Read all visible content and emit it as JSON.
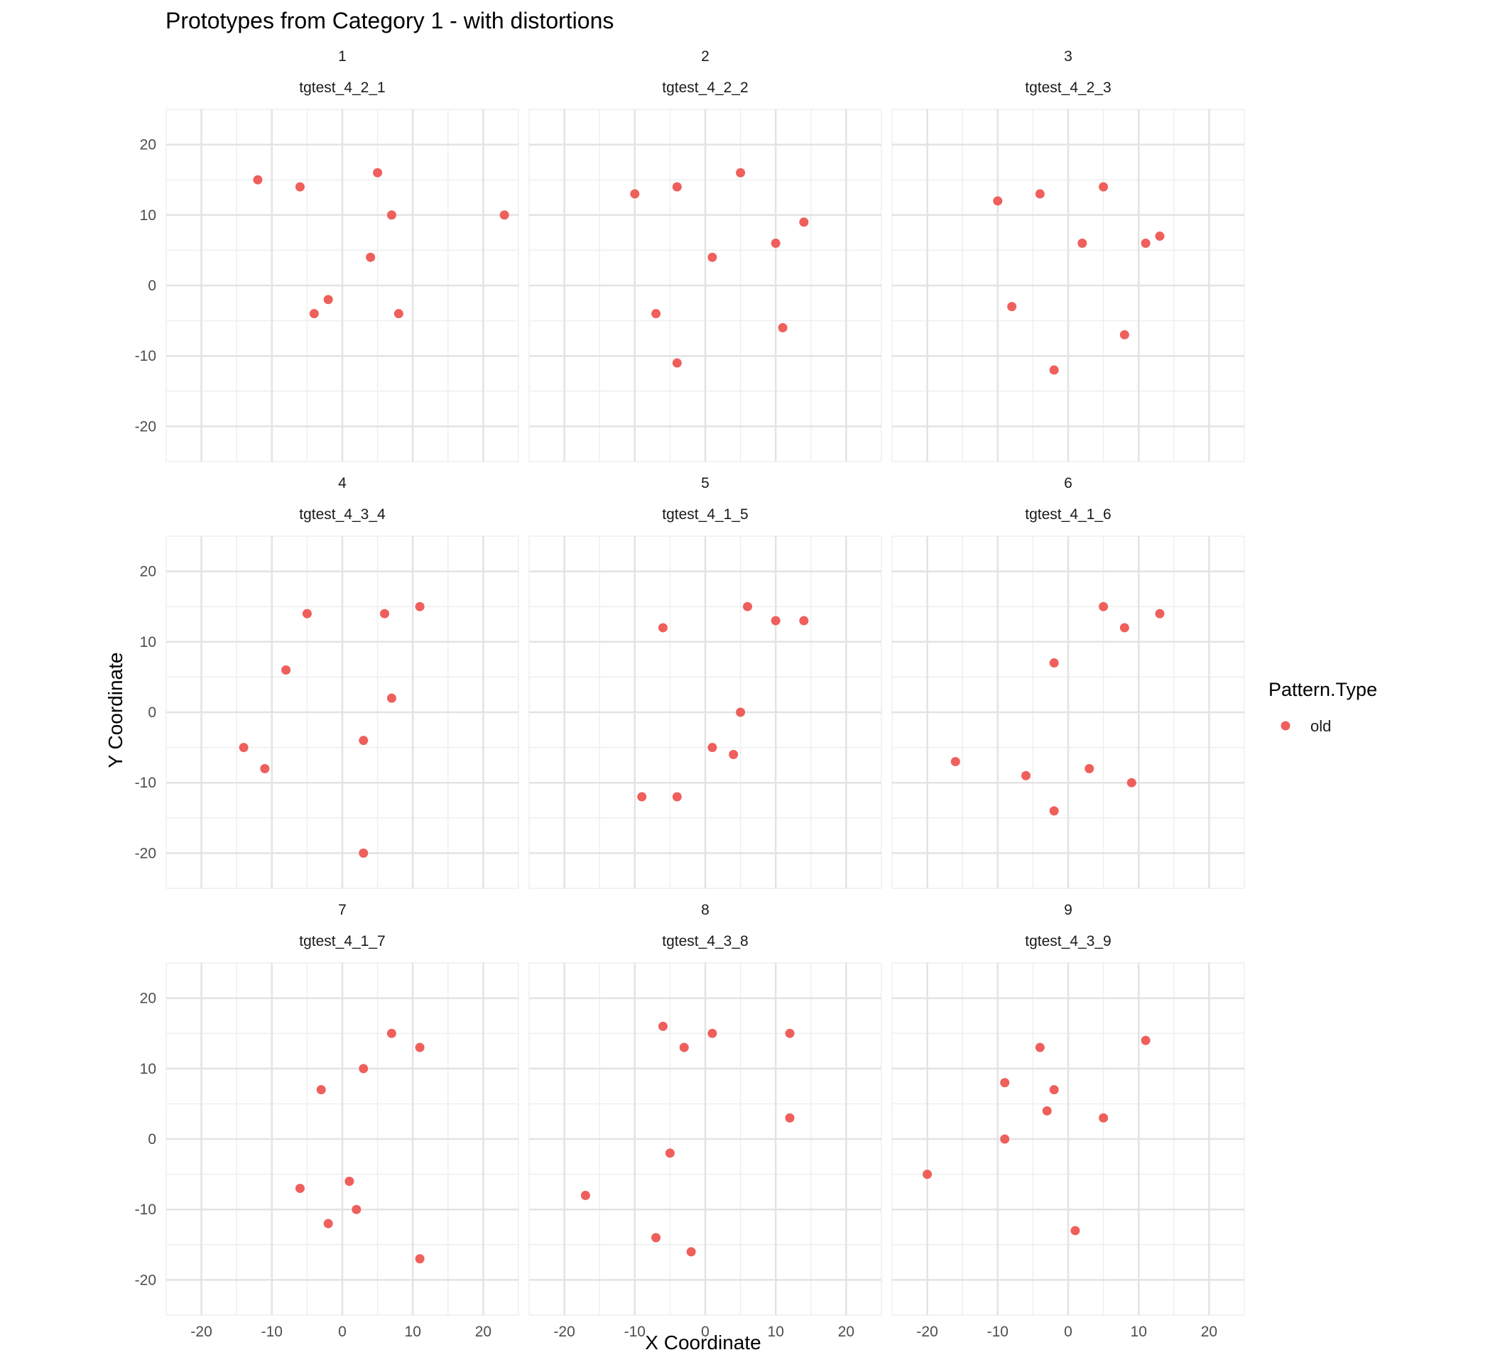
{
  "chart_data": {
    "type": "scatter",
    "title": "Prototypes from Category 1 - with distortions",
    "xlabel": "X Coordinate",
    "ylabel": "Y Coordinate",
    "xlim": [
      -25,
      25
    ],
    "ylim": [
      -25,
      25
    ],
    "x_ticks": [
      -20,
      -10,
      0,
      10,
      20
    ],
    "y_ticks": [
      -20,
      -10,
      0,
      10,
      20
    ],
    "x_tick_labels": [
      "-20",
      "-10",
      "0",
      "10",
      "20"
    ],
    "y_tick_labels": [
      "-20",
      "-10",
      "0",
      "10",
      "20"
    ],
    "grid": true,
    "legend": {
      "title": "Pattern.Type",
      "position": "right",
      "entries": [
        {
          "label": "old",
          "color": "#EF5F5B"
        }
      ]
    },
    "point_color": "#EF5F5B",
    "panels": [
      {
        "index": "1",
        "name": "tgtest_4_2_1",
        "points": [
          [
            -12,
            15
          ],
          [
            -6,
            14
          ],
          [
            5,
            16
          ],
          [
            7,
            10
          ],
          [
            23,
            10
          ],
          [
            4,
            4
          ],
          [
            -2,
            -2
          ],
          [
            -4,
            -4
          ],
          [
            8,
            -4
          ]
        ]
      },
      {
        "index": "2",
        "name": "tgtest_4_2_2",
        "points": [
          [
            -10,
            13
          ],
          [
            -4,
            14
          ],
          [
            5,
            16
          ],
          [
            14,
            9
          ],
          [
            10,
            6
          ],
          [
            1,
            4
          ],
          [
            -7,
            -4
          ],
          [
            11,
            -6
          ],
          [
            -4,
            -11
          ]
        ]
      },
      {
        "index": "3",
        "name": "tgtest_4_2_3",
        "points": [
          [
            -10,
            12
          ],
          [
            -4,
            13
          ],
          [
            5,
            14
          ],
          [
            2,
            6
          ],
          [
            11,
            6
          ],
          [
            13,
            7
          ],
          [
            -8,
            -3
          ],
          [
            8,
            -7
          ],
          [
            -2,
            -12
          ]
        ]
      },
      {
        "index": "4",
        "name": "tgtest_4_3_4",
        "points": [
          [
            -5,
            14
          ],
          [
            6,
            14
          ],
          [
            11,
            15
          ],
          [
            -8,
            6
          ],
          [
            7,
            2
          ],
          [
            -14,
            -5
          ],
          [
            -11,
            -8
          ],
          [
            3,
            -4
          ],
          [
            3,
            -20
          ]
        ]
      },
      {
        "index": "5",
        "name": "tgtest_4_1_5",
        "points": [
          [
            -6,
            12
          ],
          [
            6,
            15
          ],
          [
            10,
            13
          ],
          [
            14,
            13
          ],
          [
            5,
            0
          ],
          [
            1,
            -5
          ],
          [
            4,
            -6
          ],
          [
            -9,
            -12
          ],
          [
            -4,
            -12
          ]
        ]
      },
      {
        "index": "6",
        "name": "tgtest_4_1_6",
        "points": [
          [
            5,
            15
          ],
          [
            8,
            12
          ],
          [
            13,
            14
          ],
          [
            -2,
            7
          ],
          [
            -16,
            -7
          ],
          [
            -6,
            -9
          ],
          [
            3,
            -8
          ],
          [
            9,
            -10
          ],
          [
            -2,
            -14
          ]
        ]
      },
      {
        "index": "7",
        "name": "tgtest_4_1_7",
        "points": [
          [
            7,
            15
          ],
          [
            11,
            13
          ],
          [
            3,
            10
          ],
          [
            -3,
            7
          ],
          [
            -6,
            -7
          ],
          [
            1,
            -6
          ],
          [
            2,
            -10
          ],
          [
            -2,
            -12
          ],
          [
            11,
            -17
          ]
        ]
      },
      {
        "index": "8",
        "name": "tgtest_4_3_8",
        "points": [
          [
            -6,
            16
          ],
          [
            -3,
            13
          ],
          [
            1,
            15
          ],
          [
            12,
            15
          ],
          [
            12,
            3
          ],
          [
            -5,
            -2
          ],
          [
            -17,
            -8
          ],
          [
            -7,
            -14
          ],
          [
            -2,
            -16
          ]
        ]
      },
      {
        "index": "9",
        "name": "tgtest_4_3_9",
        "points": [
          [
            -4,
            13
          ],
          [
            11,
            14
          ],
          [
            -9,
            8
          ],
          [
            -2,
            7
          ],
          [
            -3,
            4
          ],
          [
            5,
            3
          ],
          [
            -9,
            0
          ],
          [
            -20,
            -5
          ],
          [
            1,
            -13
          ]
        ]
      }
    ]
  }
}
